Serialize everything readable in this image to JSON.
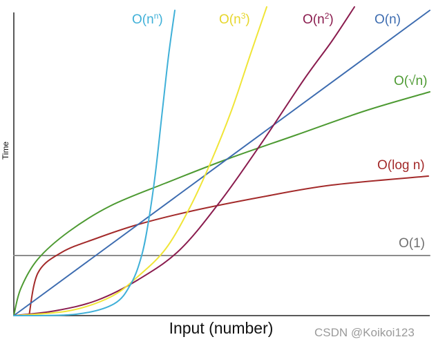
{
  "chart_data": {
    "type": "line",
    "xlabel": "Input (number)",
    "ylabel": "Time",
    "grid": false,
    "series": [
      {
        "name": "O(1)",
        "color": "#8c8c8c"
      },
      {
        "name": "O(log n)",
        "color": "#a32a2a"
      },
      {
        "name": "O(√n)",
        "color": "#4d9a32"
      },
      {
        "name": "O(n)",
        "color": "#3d6cb0"
      },
      {
        "name": "O(n2)",
        "label_base": "O(n",
        "label_sup": "2",
        "label_end": ")",
        "color": "#8a1c4e"
      },
      {
        "name": "O(n3)",
        "label_base": "O(n",
        "label_sup": "3",
        "label_end": ")",
        "color": "#f0e537"
      },
      {
        "name": "O(nn)",
        "label_base": "O(n",
        "label_sup": "n",
        "label_end": ")",
        "color": "#3fb0d8"
      }
    ]
  },
  "watermark": "CSDN @Koikoi123"
}
